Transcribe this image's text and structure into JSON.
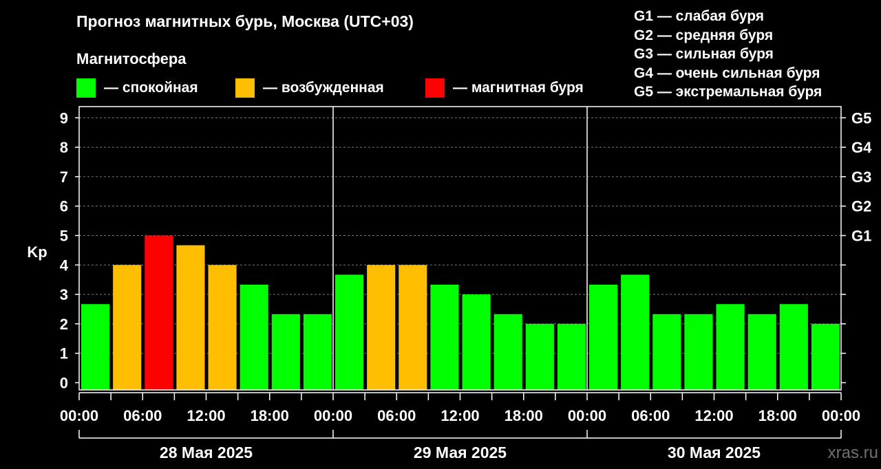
{
  "title": "Прогноз магнитных бурь, Москва (UTC+03)",
  "subtitle": "Магнитосфера",
  "legend": [
    {
      "label": "— спокойная",
      "color": "#00ff00"
    },
    {
      "label": "— возбужденная",
      "color": "#ffbf00"
    },
    {
      "label": "— магнитная буря",
      "color": "#ff0000"
    }
  ],
  "g_legend": [
    "G1 — слабая буря",
    "G2 — средняя буря",
    "G3 — сильная буря",
    "G4 — очень сильная буря",
    "G5 — экстремальная буря"
  ],
  "watermark": "xras.ru",
  "chart_data": {
    "type": "bar",
    "title": "Прогноз магнитных бурь, Москва (UTC+03)",
    "ylabel": "Kp",
    "ylim": [
      0,
      9
    ],
    "yticks": [
      "0",
      "1",
      "2",
      "3",
      "4",
      "5",
      "6",
      "7",
      "8",
      "9"
    ],
    "right_ticks": [
      {
        "value": 5,
        "label": "G1"
      },
      {
        "value": 6,
        "label": "G2"
      },
      {
        "value": 7,
        "label": "G3"
      },
      {
        "value": 8,
        "label": "G4"
      },
      {
        "value": 9,
        "label": "G5"
      }
    ],
    "xticks": [
      "00:00",
      "06:00",
      "12:00",
      "18:00",
      "00:00",
      "06:00",
      "12:00",
      "18:00",
      "00:00",
      "06:00",
      "12:00",
      "18:00",
      "00:00"
    ],
    "days": [
      "28 Мая 2025",
      "29 Мая 2025",
      "30 Мая 2025"
    ],
    "interval_hours": 3,
    "values": [
      2.67,
      4,
      5,
      4.67,
      4,
      3.33,
      2.33,
      2.33,
      3.67,
      4,
      4,
      3.33,
      3,
      2.33,
      2,
      2,
      3.33,
      3.67,
      2.33,
      2.33,
      2.67,
      2.33,
      2.67,
      2
    ],
    "levels": [
      "quiet",
      "active",
      "storm",
      "active",
      "active",
      "quiet",
      "quiet",
      "quiet",
      "quiet",
      "active",
      "active",
      "quiet",
      "quiet",
      "quiet",
      "quiet",
      "quiet",
      "quiet",
      "quiet",
      "quiet",
      "quiet",
      "quiet",
      "quiet",
      "quiet",
      "quiet"
    ],
    "level_colors": {
      "quiet": "#00ff00",
      "active": "#ffbf00",
      "storm": "#ff0000"
    },
    "grid": true
  }
}
